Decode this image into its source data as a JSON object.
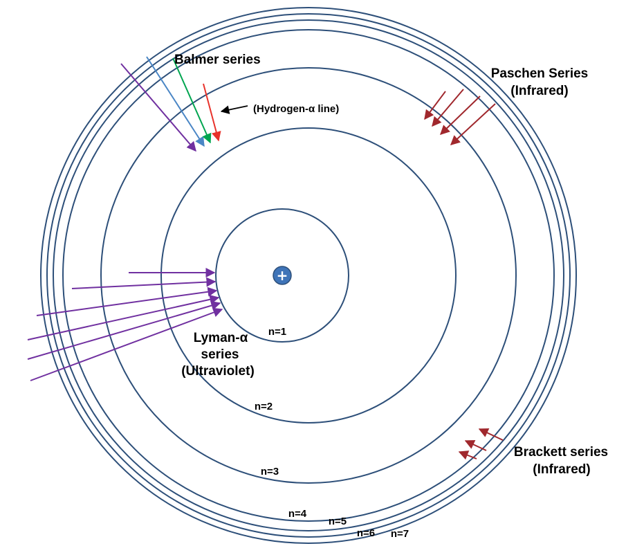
{
  "nucleus": {
    "symbol": "+"
  },
  "levels": [
    "n=1",
    "n=2",
    "n=3",
    "n=4",
    "n=5",
    "n=6",
    "n=7"
  ],
  "series": {
    "balmer": {
      "label": "Balmer series",
      "annotation": "(Hydrogen-α line)"
    },
    "paschen": {
      "label_line1": "Paschen Series",
      "label_line2": "(Infrared)"
    },
    "lyman": {
      "label_line1": "Lyman-α",
      "label_line2": "series",
      "label_line3": "(Ultraviolet)"
    },
    "brackett": {
      "label_line1": "Brackett series",
      "label_line2": "(Infrared)"
    }
  },
  "colors": {
    "orbit": "#2d4f79",
    "nucleus": "#3f74b8",
    "violet": "#7030a0",
    "blue": "#4a86c5",
    "green": "#00a550",
    "red": "#e8322b",
    "infrared": "#a0282d",
    "annotation_arrow": "#000000"
  }
}
